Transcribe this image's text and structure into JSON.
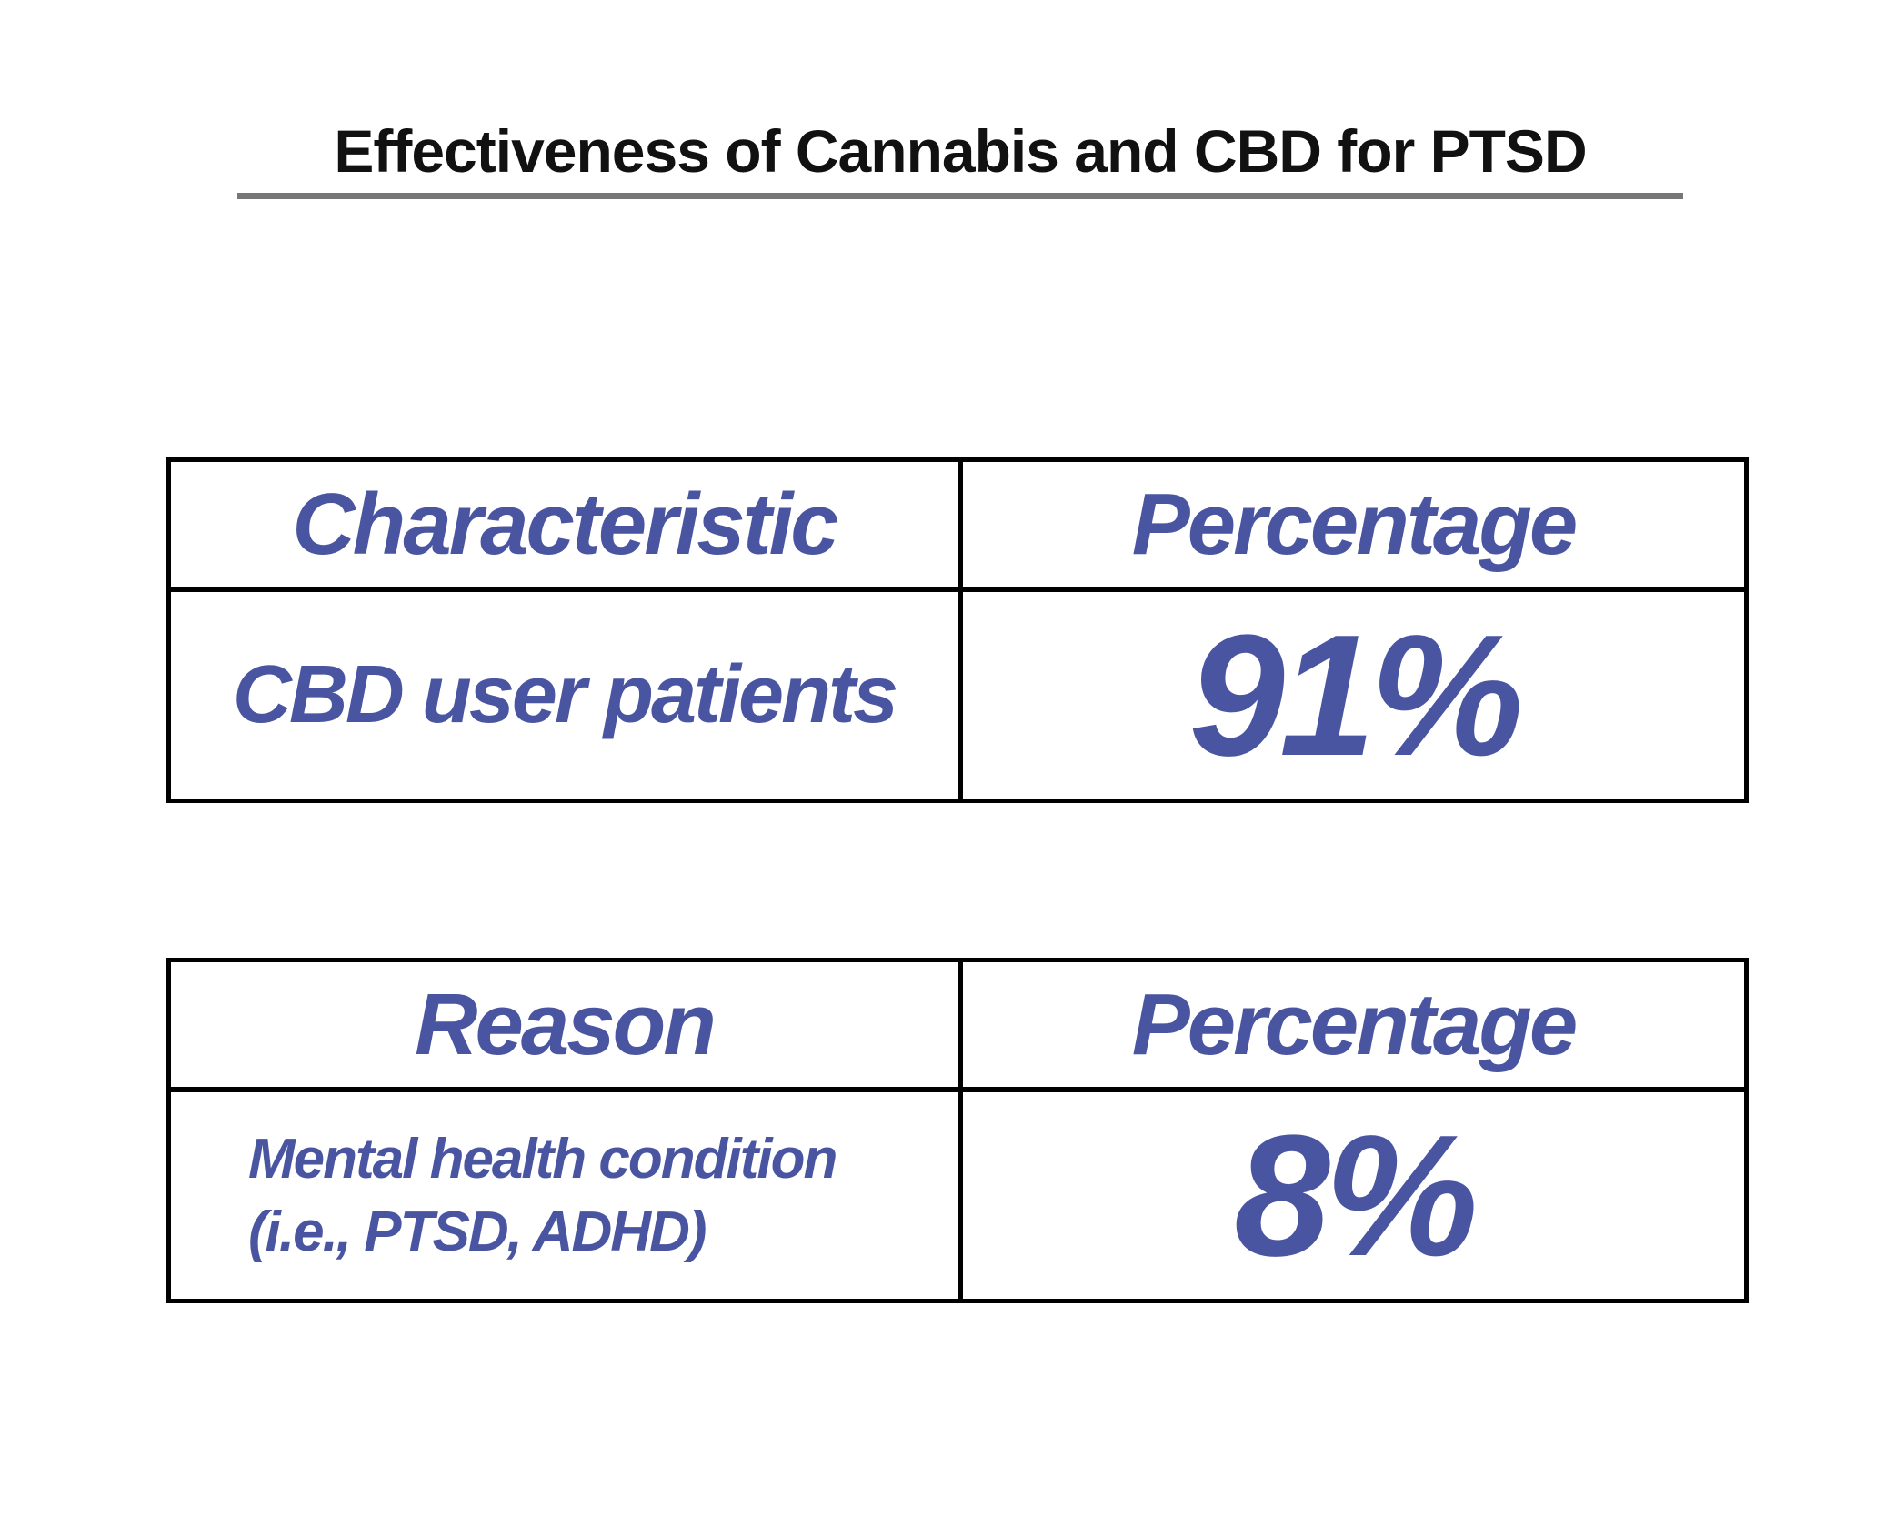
{
  "title": "Effectiveness of Cannabis and CBD for PTSD",
  "accent_color": "#4a55a2",
  "tables": [
    {
      "header": [
        "Characteristic",
        "Percentage"
      ],
      "row": [
        "CBD user patients",
        "91%"
      ]
    },
    {
      "header": [
        "Reason",
        "Percentage"
      ],
      "row_lines": [
        "Mental health condition",
        "(i.e., PTSD, ADHD)"
      ],
      "value": "8%"
    }
  ]
}
